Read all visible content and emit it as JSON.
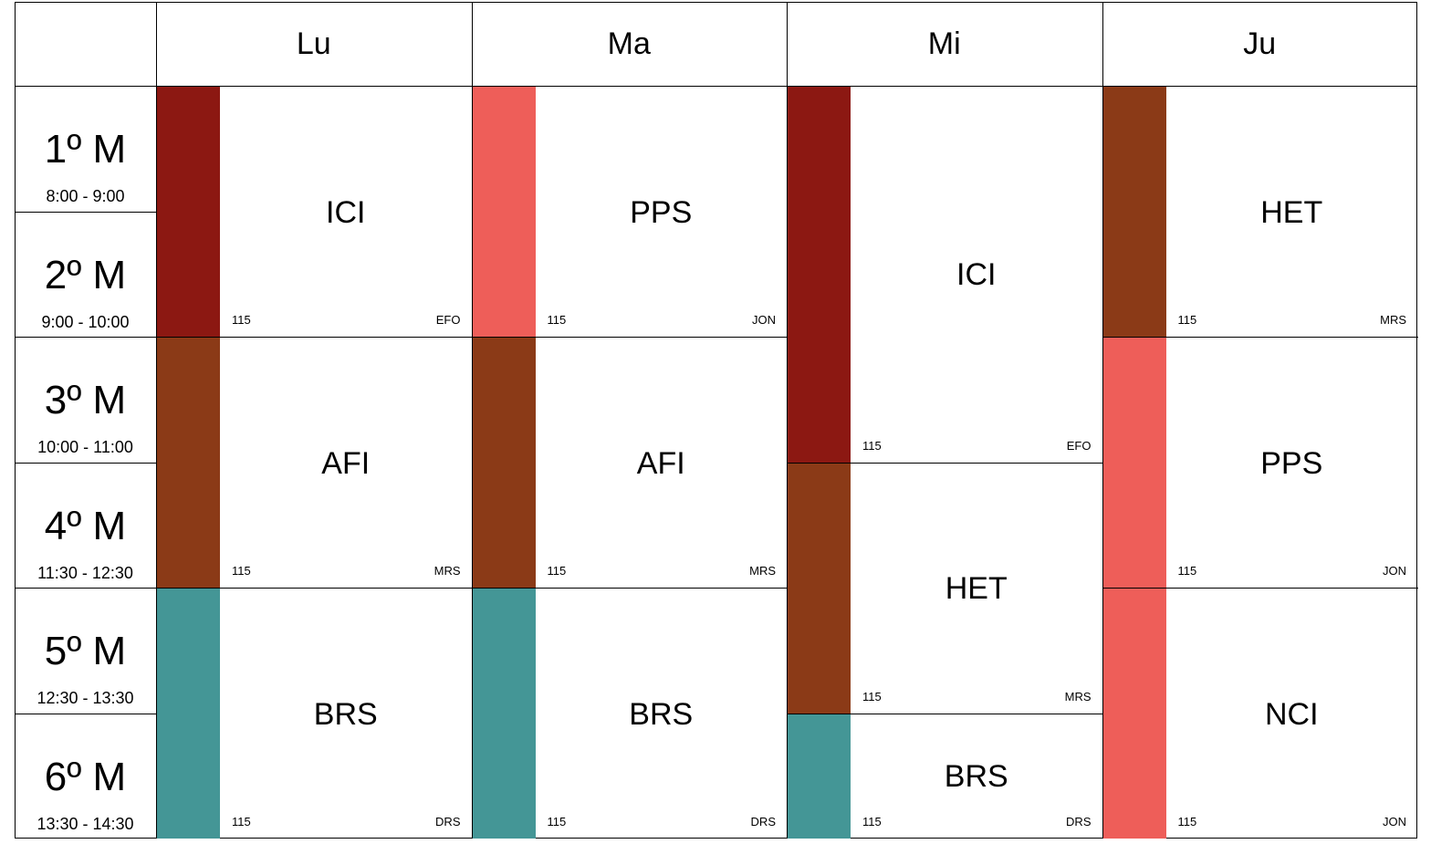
{
  "days": [
    "Lu",
    "Ma",
    "Mi",
    "Ju"
  ],
  "slots": [
    {
      "label": "1º M",
      "time": "8:00 - 9:00"
    },
    {
      "label": "2º M",
      "time": "9:00 - 10:00"
    },
    {
      "label": "3º M",
      "time": "10:00 - 11:00"
    },
    {
      "label": "4º M",
      "time": "11:30 - 12:30"
    },
    {
      "label": "5º M",
      "time": "12:30 - 13:30"
    },
    {
      "label": "6º M",
      "time": "13:30 - 14:30"
    }
  ],
  "colors": {
    "ICI": "#8c1812",
    "PPS": "#ee5e59",
    "AFI": "#8b3a17",
    "HET": "#8b3a17",
    "BRS": "#449696",
    "NCI": "#ee5e59"
  },
  "schedule": [
    [
      {
        "subject": "ICI",
        "start": 0,
        "span": 2,
        "room": "115",
        "teacher": "EFO"
      },
      {
        "subject": "AFI",
        "start": 2,
        "span": 2,
        "room": "115",
        "teacher": "MRS"
      },
      {
        "subject": "BRS",
        "start": 4,
        "span": 2,
        "room": "115",
        "teacher": "DRS"
      }
    ],
    [
      {
        "subject": "PPS",
        "start": 0,
        "span": 2,
        "room": "115",
        "teacher": "JON"
      },
      {
        "subject": "AFI",
        "start": 2,
        "span": 2,
        "room": "115",
        "teacher": "MRS"
      },
      {
        "subject": "BRS",
        "start": 4,
        "span": 2,
        "room": "115",
        "teacher": "DRS"
      }
    ],
    [
      {
        "subject": "ICI",
        "start": 0,
        "span": 3,
        "room": "115",
        "teacher": "EFO"
      },
      {
        "subject": "HET",
        "start": 3,
        "span": 2,
        "room": "115",
        "teacher": "MRS"
      },
      {
        "subject": "BRS",
        "start": 5,
        "span": 1,
        "room": "115",
        "teacher": "DRS"
      }
    ],
    [
      {
        "subject": "HET",
        "start": 0,
        "span": 2,
        "room": "115",
        "teacher": "MRS"
      },
      {
        "subject": "PPS",
        "start": 2,
        "span": 2,
        "room": "115",
        "teacher": "JON"
      },
      {
        "subject": "NCI",
        "start": 4,
        "span": 2,
        "room": "115",
        "teacher": "JON"
      }
    ]
  ]
}
